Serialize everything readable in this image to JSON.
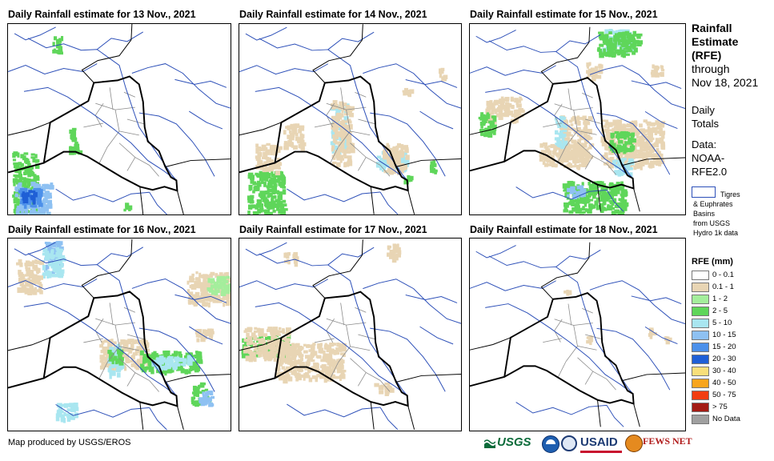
{
  "panels": [
    {
      "title": "Daily Rainfall estimate for 13 Nov., 2021"
    },
    {
      "title": "Daily Rainfall estimate for 14 Nov., 2021"
    },
    {
      "title": "Daily Rainfall estimate for 15 Nov., 2021"
    },
    {
      "title": "Daily Rainfall estimate for 16 Nov., 2021"
    },
    {
      "title": "Daily Rainfall estimate for 17 Nov., 2021"
    },
    {
      "title": "Daily Rainfall estimate for 18 Nov., 2021"
    }
  ],
  "sidebar": {
    "title_lines": [
      "Rainfall",
      "Estimate",
      "(RFE)"
    ],
    "through_lines": [
      "through",
      "Nov 18, 2021"
    ],
    "totals_lines": [
      "Daily",
      "Totals"
    ],
    "data_lines": [
      "Data:",
      "NOAA-",
      "RFE2.0"
    ],
    "basin_lines": [
      "Tigres",
      "& Euphrates",
      "Basins",
      "from USGS",
      "Hydro 1k data"
    ]
  },
  "legend": {
    "title": "RFE (mm)",
    "items": [
      {
        "label": "0 - 0.1",
        "color": "#ffffff"
      },
      {
        "label": "0.1 - 1",
        "color": "#e8d5b4"
      },
      {
        "label": "1 - 2",
        "color": "#a4ee9c"
      },
      {
        "label": "2 - 5",
        "color": "#5fd65a"
      },
      {
        "label": "5 - 10",
        "color": "#a9e6f0"
      },
      {
        "label": "10 - 15",
        "color": "#8ec1f2"
      },
      {
        "label": "15 - 20",
        "color": "#4c90ea"
      },
      {
        "label": "20 - 30",
        "color": "#1f5fd6"
      },
      {
        "label": "30 - 40",
        "color": "#f8df7a"
      },
      {
        "label": "40 - 50",
        "color": "#f8a51e"
      },
      {
        "label": "50 - 75",
        "color": "#f23d10"
      },
      {
        "label": "> 75",
        "color": "#a31b14"
      },
      {
        "label": "No Data",
        "color": "#a0a0a0"
      }
    ]
  },
  "footer": {
    "credit": "Map produced by USGS/EROS",
    "logos": [
      "USGS",
      "USAID",
      "FEWS NET"
    ]
  },
  "colors": {
    "border": "#000000",
    "admin": "#8a8a8a",
    "river": "#2c4fb8"
  }
}
